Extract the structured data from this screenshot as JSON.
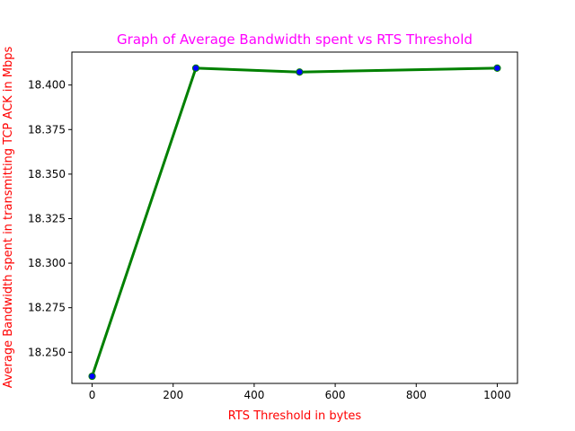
{
  "chart_data": {
    "type": "line",
    "title": "Graph of Average Bandwidth spent vs RTS Threshold",
    "xlabel": "RTS Threshold in bytes",
    "ylabel": "Average Bandwidth spent in transmitting TCP ACK in Mbps",
    "xlim": [
      -50,
      1050
    ],
    "ylim": [
      18.2325,
      18.4185
    ],
    "x_ticks": [
      0,
      200,
      400,
      600,
      800,
      1000
    ],
    "y_ticks": [
      18.25,
      18.275,
      18.3,
      18.325,
      18.35,
      18.375,
      18.4
    ],
    "x_tick_labels": [
      "0",
      "200",
      "400",
      "600",
      "800",
      "1000"
    ],
    "y_tick_labels": [
      "18.250",
      "18.275",
      "18.300",
      "18.325",
      "18.350",
      "18.375",
      "18.400"
    ],
    "series": [
      {
        "x": [
          0,
          256,
          512,
          1000
        ],
        "values": [
          18.2365,
          18.4095,
          18.4073,
          18.4095
        ]
      }
    ],
    "grid": false,
    "legend": "none"
  },
  "colors": {
    "title": "#ff00ff",
    "axis_labels": "#ff0000",
    "line": "#008000",
    "marker_face": "#0000ff",
    "marker_edge": "#008000",
    "axes": "#000000"
  }
}
